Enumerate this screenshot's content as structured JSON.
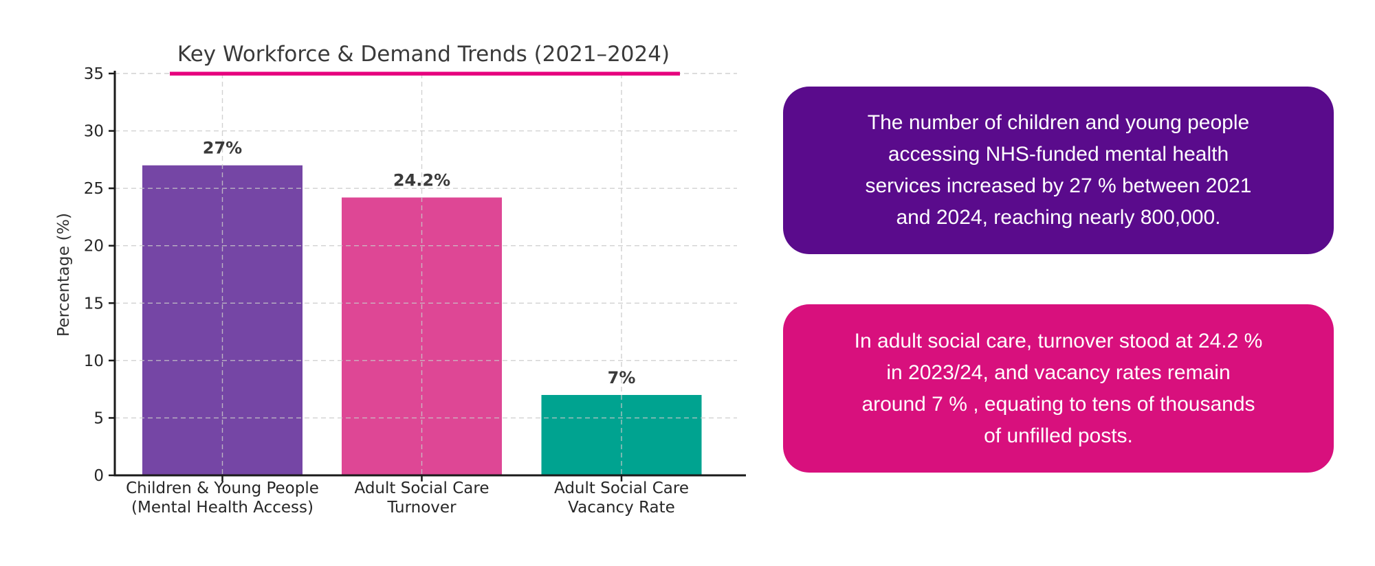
{
  "chart_data": {
    "type": "bar",
    "title": "Key Workforce & Demand Trends (2021–2024)",
    "xlabel": "",
    "ylabel": "Percentage (%)",
    "ylim": [
      0,
      35
    ],
    "yticks": [
      0,
      5,
      10,
      15,
      20,
      25,
      30,
      35
    ],
    "grid": true,
    "legend": "none",
    "categories": [
      "Children & Young People\n(Mental Health Access)",
      "Adult Social Care\nTurnover",
      "Adult Social Care\nVacancy Rate"
    ],
    "values": [
      27,
      24.2,
      7
    ],
    "value_labels": [
      "27%",
      "24.2%",
      "7%"
    ],
    "bar_colors": [
      "#7546A5",
      "#DE4795",
      "#00A390"
    ],
    "title_underline_color": "#E6007E"
  },
  "callouts": [
    {
      "text": "The number of children and young people\naccessing NHS-funded mental health\nservices increased by 27 % between 2021\nand 2024, reaching nearly 800,000.",
      "bg_color": "#5A0B8C"
    },
    {
      "text": "In adult social care, turnover stood at 24.2 %\nin 2023/24, and vacancy rates remain\naround 7 % , equating to tens of thousands\nof unfilled posts.",
      "bg_color": "#D8107D"
    }
  ]
}
